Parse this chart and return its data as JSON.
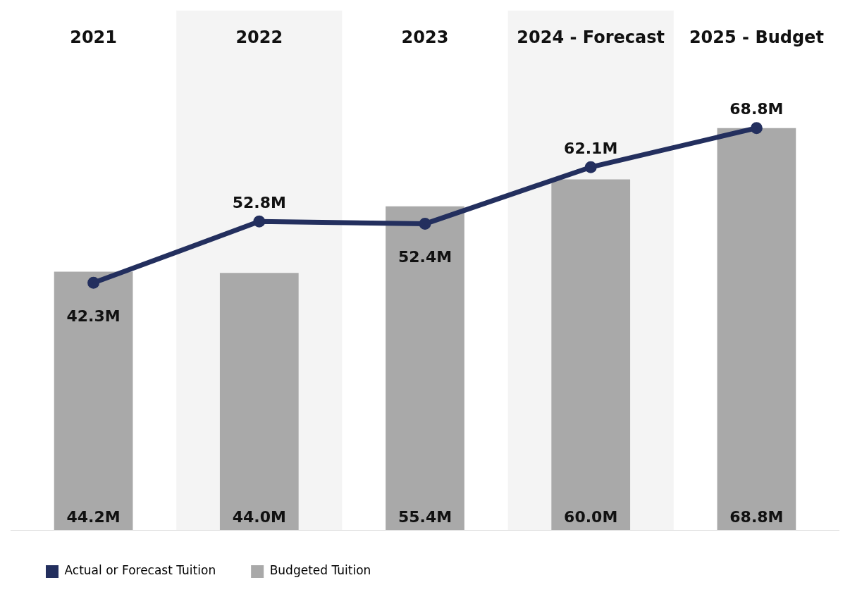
{
  "chart_data": {
    "type": "bar",
    "categories": [
      "2021",
      "2022",
      "2023",
      "2024 - Forecast",
      "2025 - Budget"
    ],
    "series": [
      {
        "name": "Actual or Forecast Tuition",
        "type": "line",
        "color": "#232f5e",
        "values": [
          42.3,
          52.8,
          52.4,
          62.1,
          68.8
        ],
        "value_labels": [
          "42.3M",
          "52.8M",
          "52.4M",
          "62.1M",
          "68.8M"
        ]
      },
      {
        "name": "Budgeted Tuition",
        "color": "#a9a9a9",
        "values": [
          44.2,
          44.0,
          55.4,
          60.0,
          68.8
        ],
        "value_labels": [
          "44.2M",
          "44.0M",
          "55.4M",
          "60.0M",
          "68.8M"
        ]
      }
    ],
    "bands": [
      {
        "axis": "x",
        "from": "2022",
        "to": "2022",
        "color": "#f4f4f4"
      },
      {
        "axis": "x",
        "from": "2024 - Forecast",
        "to": "2024 - Forecast",
        "color": "#f4f4f4"
      }
    ],
    "marker": "circle",
    "grid": false,
    "legend": "bottom left"
  }
}
